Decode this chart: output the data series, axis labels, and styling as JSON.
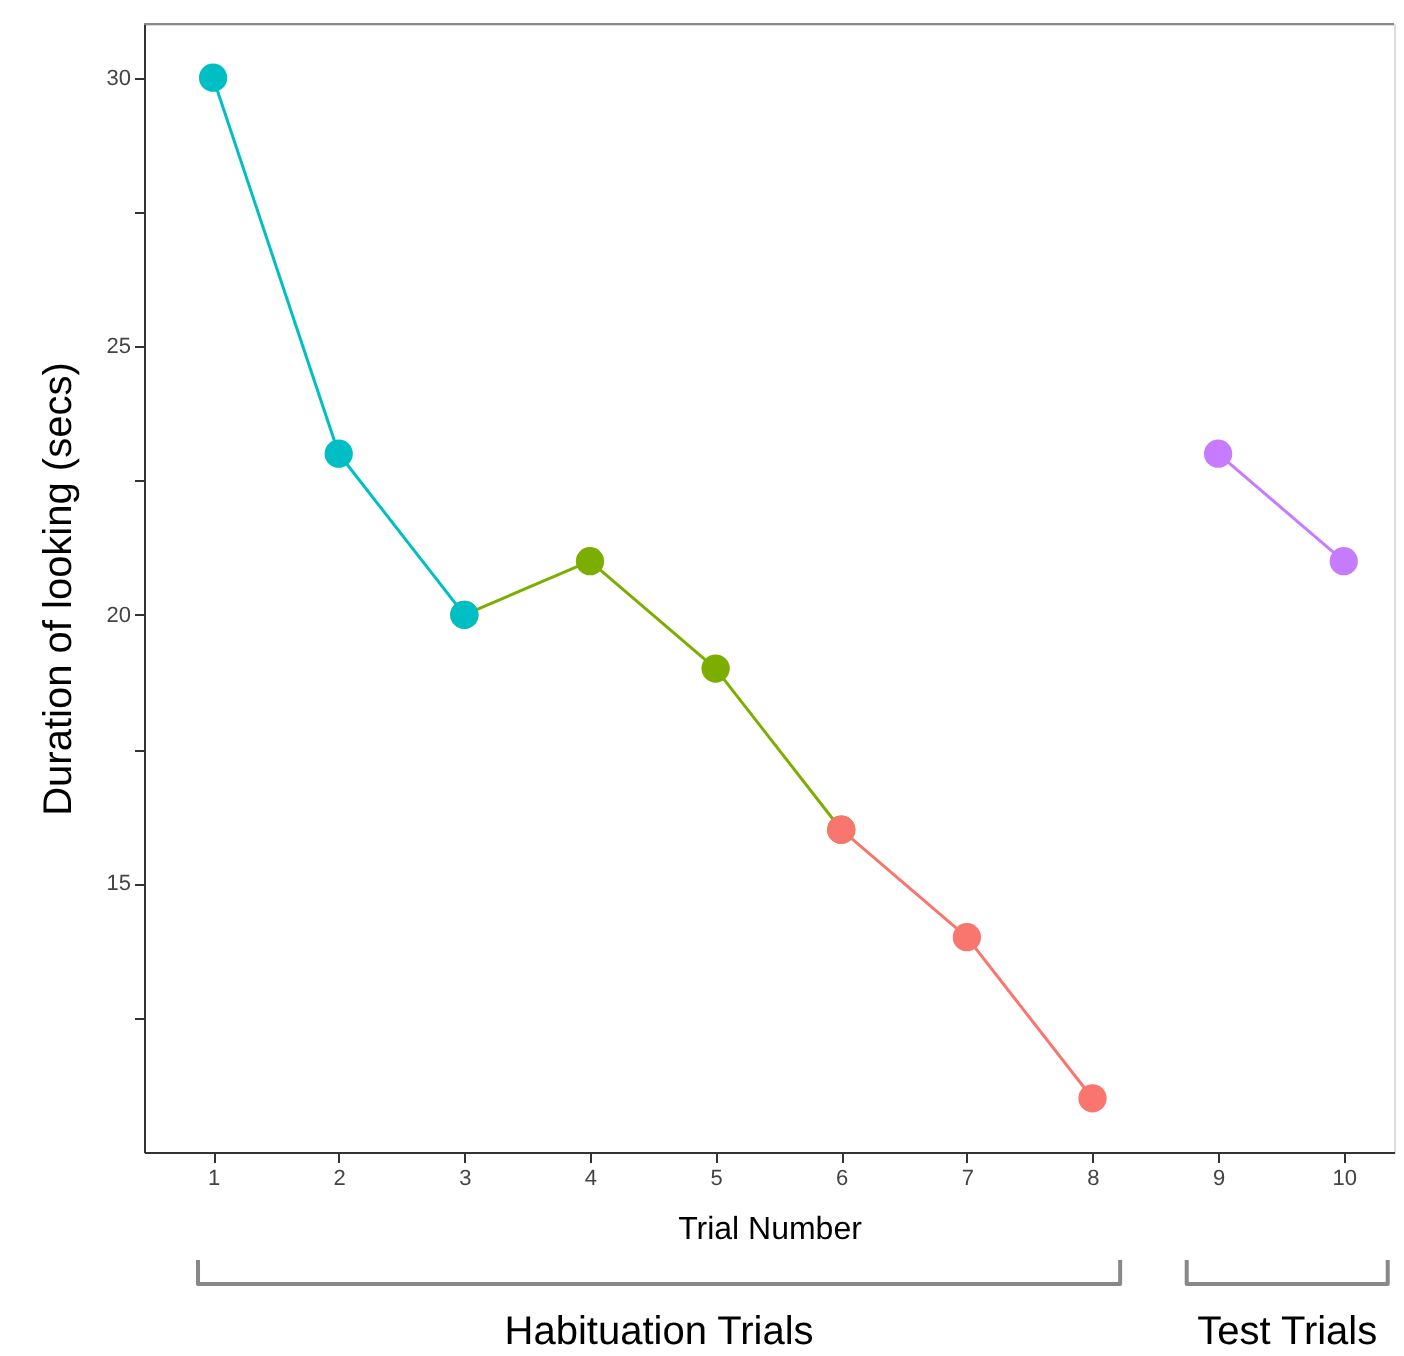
{
  "chart_data": {
    "type": "line",
    "xlabel": "Trial Number",
    "ylabel": "Duration of looking (secs)",
    "series": [
      {
        "color": "#7cae00",
        "x": [
          3,
          4,
          5,
          6
        ],
        "values": [
          20,
          21,
          19,
          16
        ]
      },
      {
        "color": "#00bfc4",
        "x": [
          1,
          2,
          3
        ],
        "values": [
          30,
          23,
          20
        ]
      },
      {
        "color": "#f8766d",
        "x": [
          6,
          7,
          8
        ],
        "values": [
          16,
          14,
          11
        ]
      },
      {
        "color": "#c77cff",
        "x": [
          9,
          10
        ],
        "values": [
          23,
          21
        ]
      }
    ],
    "xlim": [
      0.45,
      10.4
    ],
    "xticks": [
      1,
      2,
      3,
      4,
      5,
      6,
      7,
      8,
      9,
      10
    ],
    "ylim": [
      10,
      31
    ],
    "yticks": [
      {
        "value": 12.5,
        "label": null
      },
      15,
      {
        "value": 17.5,
        "label": null
      },
      20,
      {
        "value": 22.5,
        "label": null
      },
      25,
      {
        "value": 27.5,
        "label": null
      },
      30
    ],
    "marker": "circle",
    "line_style": "solid",
    "grid": false,
    "annotations": [
      "Habituation Trials",
      "Test Trials"
    ]
  }
}
